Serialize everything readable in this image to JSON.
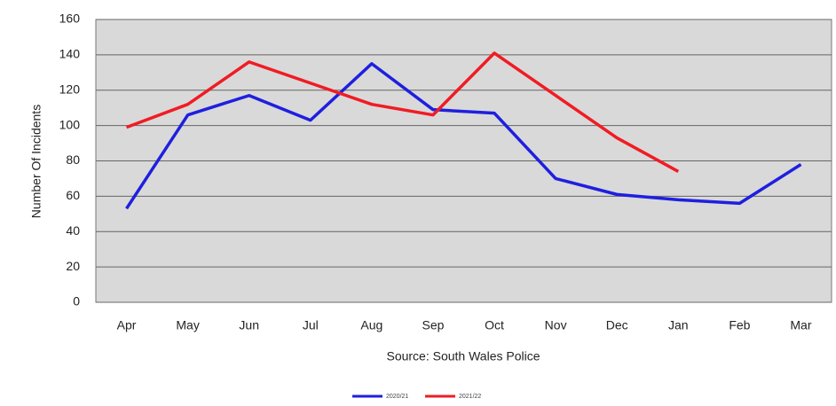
{
  "chart_data": {
    "type": "line",
    "y_label": "Number Of Incidents",
    "x_label": "Source: South Wales Police",
    "categories": [
      "Apr",
      "May",
      "Jun",
      "Jul",
      "Aug",
      "Sep",
      "Oct",
      "Nov",
      "Dec",
      "Jan",
      "Feb",
      "Mar"
    ],
    "series": [
      {
        "name": "2020/21",
        "color": "#1f1fe0",
        "values": [
          53,
          106,
          117,
          103,
          135,
          109,
          107,
          70,
          61,
          58,
          56,
          78
        ]
      },
      {
        "name": "2021/22",
        "color": "#f01c24",
        "values": [
          99,
          112,
          136,
          124,
          112,
          106,
          141,
          117,
          93,
          74,
          null,
          null
        ]
      }
    ],
    "ylim": [
      0,
      160
    ],
    "yticks": [
      0,
      20,
      40,
      60,
      80,
      100,
      120,
      140,
      160
    ],
    "grid": true
  }
}
